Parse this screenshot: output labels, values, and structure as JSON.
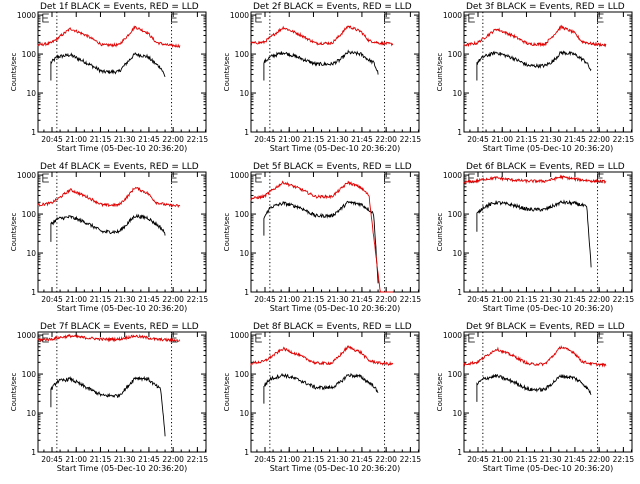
{
  "chart_data": [
    {
      "type": "line",
      "title": "Det 1f BLACK = Events, RED = LLD",
      "xlabel": "Start Time (05-Dec-10 20:36:20)",
      "ylabel": "Counts/sec",
      "x_ticks": [
        "20:45",
        "21:00",
        "21:15",
        "21:30",
        "21:45",
        "22:00",
        "22:15"
      ],
      "y_ticks": [
        "1",
        "10",
        "100",
        "1000"
      ],
      "yscale": "log",
      "ylim": [
        1,
        1200
      ],
      "xlim": [
        "20:36:20",
        "22:20"
      ],
      "vlines": [
        "20:48",
        "21:59"
      ],
      "series": [
        {
          "name": "Events",
          "color": "#000000",
          "x_minutes": [
            8,
            12,
            20,
            30,
            40,
            50,
            55,
            60,
            68,
            73,
            76,
            79
          ],
          "values": [
            60,
            85,
            95,
            60,
            35,
            35,
            60,
            100,
            85,
            55,
            45,
            25
          ],
          "dropoff": false
        },
        {
          "name": "LLD",
          "color": "#e00000",
          "x_minutes": [
            0,
            8,
            12,
            20,
            30,
            40,
            50,
            55,
            60,
            68,
            73,
            80,
            88
          ],
          "values": [
            170,
            190,
            250,
            450,
            300,
            170,
            170,
            280,
            500,
            350,
            200,
            170,
            160
          ],
          "dropoff": false
        }
      ]
    },
    {
      "type": "line",
      "title": "Det 2f BLACK = Events, RED = LLD",
      "xlabel": "Start Time (05-Dec-10 20:36:20)",
      "ylabel": "Counts/sec",
      "x_ticks": [
        "20:45",
        "21:00",
        "21:15",
        "21:30",
        "21:45",
        "22:00",
        "22:15"
      ],
      "y_ticks": [
        "1",
        "10",
        "100",
        "1000"
      ],
      "yscale": "log",
      "ylim": [
        1,
        1200
      ],
      "xlim": [
        "20:36:20",
        "22:20"
      ],
      "vlines": [
        "20:48",
        "21:59"
      ],
      "series": [
        {
          "name": "Events",
          "color": "#000000",
          "x_minutes": [
            8,
            12,
            20,
            30,
            40,
            50,
            55,
            60,
            68,
            73,
            76,
            79
          ],
          "values": [
            60,
            85,
            110,
            80,
            55,
            55,
            70,
            110,
            100,
            70,
            60,
            30
          ],
          "dropoff": false
        },
        {
          "name": "LLD",
          "color": "#e00000",
          "x_minutes": [
            0,
            8,
            12,
            20,
            30,
            40,
            50,
            55,
            60,
            68,
            73,
            80,
            88
          ],
          "values": [
            190,
            200,
            270,
            480,
            320,
            190,
            190,
            300,
            520,
            380,
            220,
            190,
            180
          ],
          "dropoff": false
        }
      ]
    },
    {
      "type": "line",
      "title": "Det 3f BLACK = Events, RED = LLD",
      "xlabel": "Start Time (05-Dec-10 20:36:20)",
      "ylabel": "Counts/sec",
      "x_ticks": [
        "20:45",
        "21:00",
        "21:15",
        "21:30",
        "21:45",
        "22:00",
        "22:15"
      ],
      "y_ticks": [
        "1",
        "10",
        "100",
        "1000"
      ],
      "yscale": "log",
      "ylim": [
        1,
        1200
      ],
      "xlim": [
        "20:36:20",
        "22:20"
      ],
      "vlines": [
        "20:48",
        "21:59"
      ],
      "series": [
        {
          "name": "Events",
          "color": "#000000",
          "x_minutes": [
            8,
            12,
            20,
            30,
            40,
            50,
            55,
            60,
            68,
            73,
            76,
            79
          ],
          "values": [
            60,
            85,
            110,
            80,
            50,
            50,
            65,
            110,
            100,
            75,
            60,
            35
          ],
          "dropoff": false
        },
        {
          "name": "LLD",
          "color": "#e00000",
          "x_minutes": [
            0,
            8,
            12,
            20,
            30,
            40,
            50,
            55,
            60,
            68,
            73,
            80,
            88
          ],
          "values": [
            170,
            190,
            250,
            440,
            300,
            180,
            180,
            290,
            500,
            360,
            210,
            180,
            170
          ],
          "dropoff": false
        }
      ]
    },
    {
      "type": "line",
      "title": "Det 4f BLACK = Events, RED = LLD",
      "xlabel": "Start Time (05-Dec-10 20:36:20)",
      "ylabel": "Counts/sec",
      "x_ticks": [
        "20:45",
        "21:00",
        "21:15",
        "21:30",
        "21:45",
        "22:00",
        "22:15"
      ],
      "y_ticks": [
        "1",
        "10",
        "100",
        "1000"
      ],
      "yscale": "log",
      "ylim": [
        1,
        1200
      ],
      "xlim": [
        "20:36:20",
        "22:20"
      ],
      "vlines": [
        "20:48",
        "21:59"
      ],
      "series": [
        {
          "name": "Events",
          "color": "#000000",
          "x_minutes": [
            8,
            12,
            20,
            30,
            40,
            50,
            55,
            60,
            68,
            73,
            76,
            79
          ],
          "values": [
            55,
            75,
            85,
            60,
            35,
            35,
            55,
            90,
            80,
            55,
            45,
            30
          ],
          "dropoff": false
        },
        {
          "name": "LLD",
          "color": "#e00000",
          "x_minutes": [
            0,
            8,
            12,
            20,
            30,
            40,
            50,
            55,
            60,
            68,
            73,
            80,
            88
          ],
          "values": [
            170,
            190,
            240,
            420,
            280,
            170,
            170,
            270,
            480,
            340,
            200,
            170,
            160
          ],
          "dropoff": false
        }
      ]
    },
    {
      "type": "line",
      "title": "Det 5f BLACK = Events, RED = LLD",
      "xlabel": "Start Time (05-Dec-10 20:36:20)",
      "ylabel": "Counts/sec",
      "x_ticks": [
        "20:45",
        "21:00",
        "21:15",
        "21:30",
        "21:45",
        "22:00",
        "22:15"
      ],
      "y_ticks": [
        "1",
        "10",
        "100",
        "1000"
      ],
      "yscale": "log",
      "ylim": [
        1,
        1200
      ],
      "xlim": [
        "20:36:20",
        "22:20"
      ],
      "vlines": [
        "20:48",
        "21:59"
      ],
      "series": [
        {
          "name": "Events",
          "color": "#000000",
          "x_minutes": [
            8,
            12,
            20,
            30,
            40,
            50,
            55,
            60,
            68,
            73,
            76,
            79
          ],
          "values": [
            80,
            150,
            190,
            150,
            90,
            90,
            130,
            200,
            180,
            130,
            100,
            1
          ],
          "dropoff": true
        },
        {
          "name": "LLD",
          "color": "#e00000",
          "x_minutes": [
            0,
            8,
            12,
            20,
            30,
            40,
            50,
            55,
            60,
            68,
            73,
            80,
            88
          ],
          "values": [
            250,
            280,
            380,
            650,
            450,
            280,
            280,
            420,
            650,
            480,
            300,
            1,
            1
          ],
          "dropoff": true
        }
      ]
    },
    {
      "type": "line",
      "title": "Det 6f BLACK = Events, RED = LLD",
      "xlabel": "Start Time (05-Dec-10 20:36:20)",
      "ylabel": "Counts/sec",
      "x_ticks": [
        "20:45",
        "21:00",
        "21:15",
        "21:30",
        "21:45",
        "22:00",
        "22:15"
      ],
      "y_ticks": [
        "1",
        "10",
        "100",
        "1000"
      ],
      "yscale": "log",
      "ylim": [
        1,
        1200
      ],
      "xlim": [
        "20:36:20",
        "22:20"
      ],
      "vlines": [
        "20:48",
        "21:59"
      ],
      "series": [
        {
          "name": "Events",
          "color": "#000000",
          "x_minutes": [
            8,
            12,
            20,
            30,
            40,
            50,
            55,
            60,
            68,
            73,
            76,
            79
          ],
          "values": [
            100,
            150,
            200,
            170,
            130,
            130,
            160,
            200,
            190,
            170,
            150,
            3
          ],
          "dropoff": false
        },
        {
          "name": "LLD",
          "color": "#e00000",
          "x_minutes": [
            0,
            8,
            12,
            20,
            30,
            40,
            50,
            55,
            60,
            68,
            73,
            80,
            88
          ],
          "values": [
            650,
            700,
            780,
            850,
            750,
            700,
            700,
            780,
            900,
            800,
            750,
            700,
            680
          ],
          "dropoff": false
        }
      ]
    },
    {
      "type": "line",
      "title": "Det 7f BLACK = Events, RED = LLD",
      "xlabel": "Start Time (05-Dec-10 20:36:20)",
      "ylabel": "Counts/sec",
      "x_ticks": [
        "20:45",
        "21:00",
        "21:15",
        "21:30",
        "21:45",
        "22:00",
        "22:15"
      ],
      "y_ticks": [
        "1",
        "10",
        "100",
        "1000"
      ],
      "yscale": "log",
      "ylim": [
        1,
        1200
      ],
      "xlim": [
        "20:36:20",
        "22:20"
      ],
      "vlines": [
        "20:48",
        "21:59"
      ],
      "series": [
        {
          "name": "Events",
          "color": "#000000",
          "x_minutes": [
            8,
            12,
            20,
            30,
            40,
            50,
            55,
            60,
            68,
            73,
            76,
            79
          ],
          "values": [
            40,
            65,
            75,
            45,
            28,
            28,
            45,
            80,
            75,
            50,
            40,
            2
          ],
          "dropoff": false
        },
        {
          "name": "LLD",
          "color": "#e00000",
          "x_minutes": [
            0,
            8,
            12,
            20,
            30,
            40,
            50,
            55,
            60,
            68,
            73,
            80,
            88
          ],
          "values": [
            750,
            780,
            850,
            950,
            850,
            780,
            780,
            870,
            950,
            850,
            780,
            750,
            720
          ],
          "dropoff": false
        }
      ]
    },
    {
      "type": "line",
      "title": "Det 8f BLACK = Events, RED = LLD",
      "xlabel": "Start Time (05-Dec-10 20:36:20)",
      "ylabel": "Counts/sec",
      "x_ticks": [
        "20:45",
        "21:00",
        "21:15",
        "21:30",
        "21:45",
        "22:00",
        "22:15"
      ],
      "y_ticks": [
        "1",
        "10",
        "100",
        "1000"
      ],
      "yscale": "log",
      "ylim": [
        1,
        1200
      ],
      "xlim": [
        "20:36:20",
        "22:20"
      ],
      "vlines": [
        "20:48",
        "21:59"
      ],
      "series": [
        {
          "name": "Events",
          "color": "#000000",
          "x_minutes": [
            8,
            12,
            20,
            30,
            40,
            50,
            55,
            60,
            68,
            73,
            76,
            79
          ],
          "values": [
            50,
            75,
            95,
            70,
            45,
            45,
            60,
            95,
            85,
            60,
            50,
            30
          ],
          "dropoff": false
        },
        {
          "name": "LLD",
          "color": "#e00000",
          "x_minutes": [
            0,
            8,
            12,
            20,
            30,
            40,
            50,
            55,
            60,
            68,
            73,
            80,
            88
          ],
          "values": [
            190,
            210,
            270,
            450,
            300,
            190,
            190,
            300,
            500,
            360,
            220,
            190,
            180
          ],
          "dropoff": false
        }
      ]
    },
    {
      "type": "line",
      "title": "Det 9f BLACK = Events, RED = LLD",
      "xlabel": "Start Time (05-Dec-10 20:36:20)",
      "ylabel": "Counts/sec",
      "x_ticks": [
        "20:45",
        "21:00",
        "21:15",
        "21:30",
        "21:45",
        "22:00",
        "22:15"
      ],
      "y_ticks": [
        "1",
        "10",
        "100",
        "1000"
      ],
      "yscale": "log",
      "ylim": [
        1,
        1200
      ],
      "xlim": [
        "20:36:20",
        "22:20"
      ],
      "vlines": [
        "20:48",
        "21:59"
      ],
      "series": [
        {
          "name": "Events",
          "color": "#000000",
          "x_minutes": [
            8,
            12,
            20,
            30,
            40,
            50,
            55,
            60,
            68,
            73,
            76,
            79
          ],
          "values": [
            55,
            75,
            90,
            65,
            40,
            40,
            60,
            90,
            80,
            60,
            45,
            30
          ],
          "dropoff": false
        },
        {
          "name": "LLD",
          "color": "#e00000",
          "x_minutes": [
            0,
            8,
            12,
            20,
            30,
            40,
            50,
            55,
            60,
            68,
            73,
            80,
            88
          ],
          "values": [
            180,
            200,
            260,
            440,
            300,
            180,
            180,
            290,
            500,
            360,
            210,
            180,
            170
          ],
          "dropoff": false
        }
      ]
    }
  ]
}
